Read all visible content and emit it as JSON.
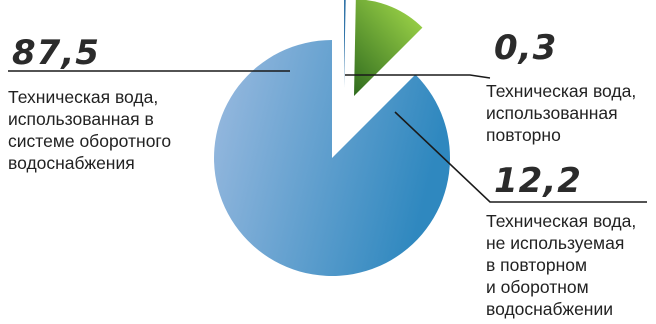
{
  "chart_data": {
    "type": "pie",
    "slices": [
      {
        "value": 87.5,
        "value_label": "87,5",
        "label_lines": [
          "Техническая вода,",
          "использованная в",
          "системе оборотного",
          "водоснабжения"
        ],
        "color_light": "#9cbbe0",
        "color_dark": "#2f88bf"
      },
      {
        "value": 0.3,
        "value_label": "0,3",
        "label_lines": [
          "Техническая вода,",
          "использованная",
          "повторно"
        ],
        "color_light": "#3a7db0",
        "color_dark": "#1b5f96"
      },
      {
        "value": 12.2,
        "value_label": "12,2",
        "label_lines": [
          "Техническая вода,",
          "не используемая",
          "в повторном",
          "и оборотном",
          "водоснабжении"
        ],
        "color_light": "#9dd448",
        "color_dark": "#2f6b1e"
      }
    ]
  }
}
